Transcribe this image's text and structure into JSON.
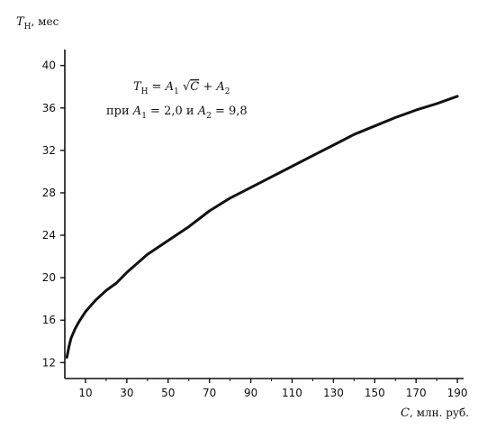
{
  "chart_data": {
    "type": "line",
    "title": "",
    "ylabel": "T_Н, мес",
    "ylabel_parts": {
      "main": "T",
      "sub": "Н",
      "rest": ", мес"
    },
    "xlabel": "C, млн. руб.",
    "xlabel_parts": {
      "main": "C",
      "rest": ", млн. руб."
    },
    "xlim": [
      0,
      193
    ],
    "ylim": [
      10.5,
      41.5
    ],
    "xticks": [
      10,
      30,
      50,
      70,
      90,
      110,
      130,
      150,
      170,
      190
    ],
    "yticks": [
      12,
      16,
      20,
      24,
      28,
      32,
      36,
      40
    ],
    "grid": false,
    "annotation": {
      "formula": "T_Н = A_1 √C + A_2",
      "params": "при A_1 = 2,0 и A_2 = 9,8",
      "formula_parts": {
        "t": "T",
        "t_sub": "Н",
        "eq": " = ",
        "a1": "A",
        "a1_sub": "1",
        "sqrt": " √",
        "c": "C",
        "plus": " + ",
        "a2": "A",
        "a2_sub": "2"
      },
      "params_parts": {
        "pri": "при ",
        "a1": "A",
        "a1_sub": "1",
        "v1": " = 2,0 и ",
        "a2": "A",
        "a2_sub": "2",
        "v2": " = 9,8"
      }
    },
    "series": [
      {
        "x": [
          1,
          2,
          3,
          5,
          7,
          10,
          15,
          20,
          25,
          30,
          40,
          50,
          60,
          70,
          80,
          90,
          100,
          110,
          120,
          130,
          140,
          150,
          160,
          170,
          180,
          190
        ],
        "y": [
          12.5,
          13.5,
          14.3,
          15.2,
          15.9,
          16.8,
          17.9,
          18.8,
          19.5,
          20.5,
          22.2,
          23.5,
          24.8,
          26.3,
          27.5,
          28.5,
          29.5,
          30.5,
          31.5,
          32.5,
          33.5,
          34.3,
          35.1,
          35.8,
          36.4,
          37.1
        ]
      }
    ]
  }
}
